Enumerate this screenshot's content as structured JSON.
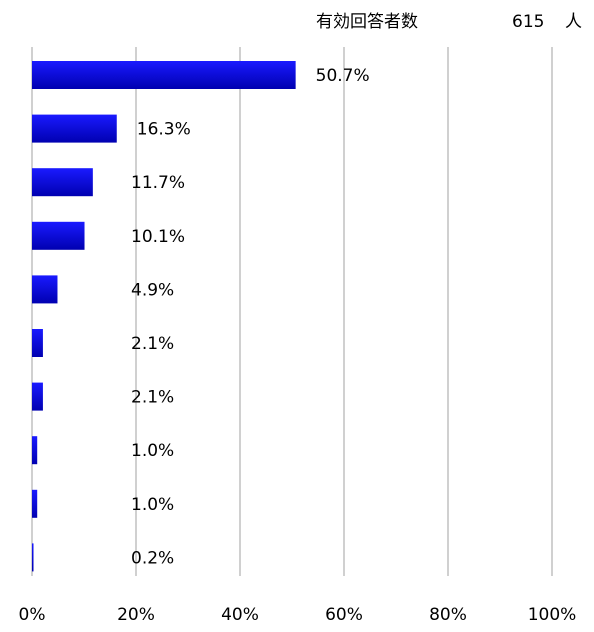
{
  "header": {
    "respondents_label": "有効回答者数",
    "respondents_count": "615",
    "respondents_unit": "人"
  },
  "colors": {
    "bar": "#1a1aff",
    "bar_dark": "#0000b0",
    "grid": "#b0b0b0"
  },
  "chart_data": {
    "type": "bar",
    "orientation": "horizontal",
    "values": [
      50.7,
      16.3,
      11.7,
      10.1,
      4.9,
      2.1,
      2.1,
      1.0,
      1.0,
      0.2
    ],
    "data_labels": [
      "50.7%",
      "16.3%",
      "11.7%",
      "10.1%",
      "4.9%",
      "2.1%",
      "2.1%",
      "1.0%",
      "1.0%",
      "0.2%"
    ],
    "xlim": [
      0,
      100
    ],
    "x_ticks": [
      0,
      20,
      40,
      60,
      80,
      100
    ],
    "x_tick_labels": [
      "0%",
      "20%",
      "40%",
      "60%",
      "80%",
      "100%"
    ],
    "grid": true,
    "legend": false
  }
}
